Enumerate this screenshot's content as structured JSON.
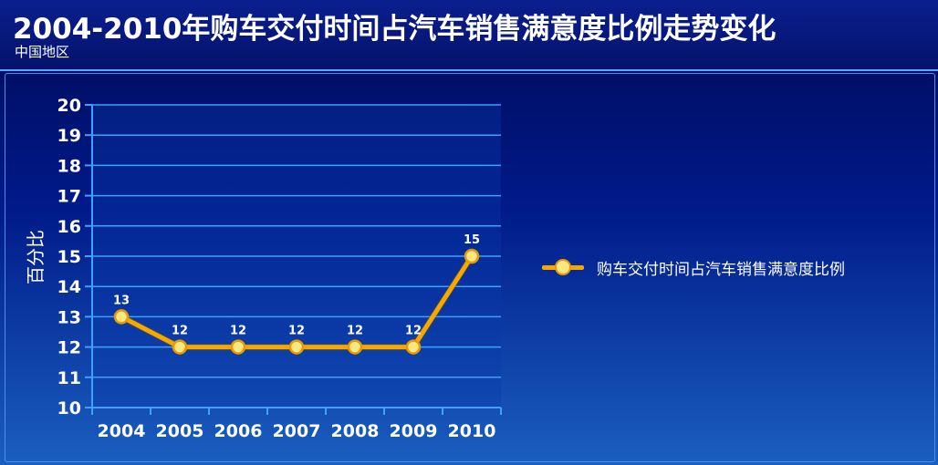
{
  "header": {
    "title": "2004-2010年购车交付时间占汽车销售满意度比例走势变化",
    "subtitle": "中国地区"
  },
  "colors": {
    "line": "#f5a800",
    "marker_fill": "#ffe680",
    "grid": "#3fa0ff",
    "text": "#ffffff"
  },
  "chart_data": {
    "type": "line",
    "categories": [
      "2004",
      "2005",
      "2006",
      "2007",
      "2008",
      "2009",
      "2010"
    ],
    "series": [
      {
        "name": "购车交付时间占汽车销售满意度比例",
        "values": [
          13,
          12,
          12,
          12,
          12,
          12,
          15
        ]
      }
    ],
    "ylabel": "百分比",
    "xlabel": "",
    "ylim": [
      10,
      20
    ],
    "yticks": [
      10,
      11,
      12,
      13,
      14,
      15,
      16,
      17,
      18,
      19,
      20
    ],
    "data_labels": [
      "13",
      "12",
      "12",
      "12",
      "12",
      "12",
      "15"
    ],
    "grid": true,
    "legend_position": "right"
  }
}
